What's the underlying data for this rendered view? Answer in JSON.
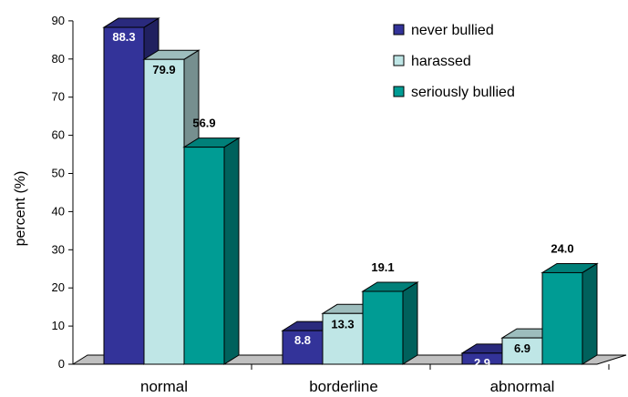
{
  "chart_data": {
    "type": "bar",
    "title": "",
    "xlabel": "",
    "ylabel": "percent (%)",
    "categories": [
      "normal",
      "borderline",
      "abnormal"
    ],
    "series": [
      {
        "name": "never bullied",
        "values": [
          88.3,
          8.8,
          2.9
        ],
        "labels": [
          "88.3",
          "8.8",
          "2.9"
        ],
        "color": "#333399",
        "label_color": "#ffffff"
      },
      {
        "name": "harassed",
        "values": [
          79.9,
          13.3,
          6.9
        ],
        "labels": [
          "79.9",
          "13.3",
          "6.9"
        ],
        "color": "#bfe6e6",
        "label_color": "#000000"
      },
      {
        "name": "seriously bullied",
        "values": [
          56.9,
          19.1,
          24.0
        ],
        "labels": [
          "56.9",
          "19.1",
          "24.0"
        ],
        "color": "#009c94",
        "label_color": "#000000"
      }
    ],
    "ylim": [
      0,
      90
    ],
    "yticks": [
      0,
      10,
      20,
      30,
      40,
      50,
      60,
      70,
      80,
      90
    ],
    "grid": false,
    "legend_position": "top-right"
  }
}
